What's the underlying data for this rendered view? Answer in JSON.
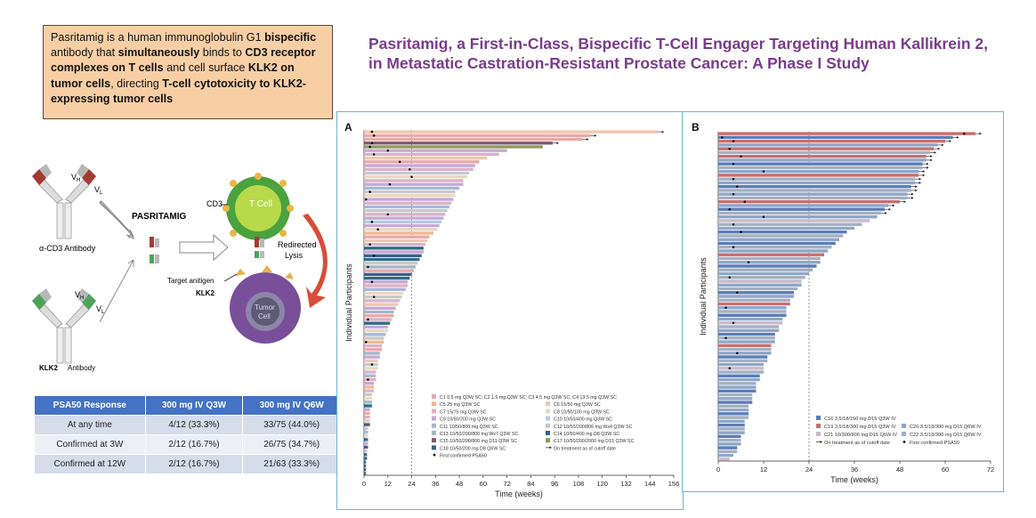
{
  "callout": {
    "t1": "Pasritamig is a human immunoglobulin G1 ",
    "t2": "bispecific",
    "t3": " antibody that ",
    "t4": "simultaneously",
    "t5": " binds to ",
    "t6": "CD3 receptor complexes on T cells",
    "t7": " and cell surface ",
    "t8": "KLK2 on tumor cells",
    "t9": ", directing ",
    "t10": "T-cell cytotoxicity to KLK2-expressing tumor cells"
  },
  "title": {
    "line1": "Pasritamig, a First-in-Class, Bispecific T-Cell Engager Targeting Human Kallikrein 2,",
    "line2": "in Metastatic Castration-Resistant Prostate Cancer: A Phase I Study"
  },
  "mechanism": {
    "vh": "V",
    "vh_sub": "H",
    "vl": "V",
    "vl_sub": "L",
    "cd3_antibody": "α-CD3 Antibody",
    "klk2_antibody_a": "KLK2",
    "klk2_antibody_b": "Antibody",
    "pasritamig": "PASRITAMIG",
    "cd3": "CD3",
    "tcell": "T Cell",
    "redirected": "Redirected",
    "lysis": "Lysis",
    "target_antigen": "Target anitigen",
    "klk2": "KLK2",
    "tumor": "Tumor",
    "cell": "Cell"
  },
  "psa_table": {
    "headers": [
      "PSA50 Response",
      "300 mg IV Q3W",
      "300 mg IV Q6W"
    ],
    "rows": [
      [
        "At any time",
        "4/12 (33.3%)",
        "33/75 (44.0%)"
      ],
      [
        "Confirmed at 3W",
        "2/12 (16.7%)",
        "26/75 (34.7%)"
      ],
      [
        "Confirmed at 12W",
        "2/12 (16.7%)",
        "21/63 (33.3%)"
      ]
    ]
  },
  "chart_data": [
    {
      "type": "bar",
      "panel": "A",
      "orientation": "horizontal",
      "xlabel": "Time (weeks)",
      "ylabel": "Individual Participants",
      "xticks": [
        0,
        12,
        24,
        36,
        48,
        60,
        72,
        84,
        96,
        108,
        120,
        132,
        144,
        156
      ],
      "xlim": [
        0,
        156
      ],
      "reference_line": 24,
      "legend": [
        {
          "label": "C1 0.5 mg Q3W SC; C2 1.5 mg Q3W SC; C3 4.5 mg Q3W SC; C4 13.5 mg Q3W SC",
          "color": "#e9a9a9"
        },
        {
          "label": "C5 25 mg Q3W SC",
          "color": "#f2b88f"
        },
        {
          "label": "C6 15/50 mg Q3W SC",
          "color": "#f1c6b0"
        },
        {
          "label": "C7 15/75 mg Q3W SC",
          "color": "#d9b3c8"
        },
        {
          "label": "C8 10/50/100 mg Q3W SC",
          "color": "#e8d7c2"
        },
        {
          "label": "C9 10/50/200 mg Q3W SC",
          "color": "#c7a8d6"
        },
        {
          "label": "C10 10/50/400 mg Q3W SC",
          "color": "#b7c9e0"
        },
        {
          "label": "C11 10/50/800 mg Q3W SC",
          "color": "#a6b8d8"
        },
        {
          "label": "C12 10/50/200/800 mg Wx4 Q3W SC",
          "color": "#c9c9c9"
        },
        {
          "label": "C13 10/50/200/800 mg Wx7 Q3W SC",
          "color": "#a3b7c7"
        },
        {
          "label": "C14 10/50/400 mg D8 Q3W SC",
          "color": "#2f6b84"
        },
        {
          "label": "C15 10/50/200/800 mg D11 Q3W SC",
          "color": "#7b5a6e"
        },
        {
          "label": "C17 10/50/200/2000 mg D15 Q3W SC",
          "color": "#8e9b57"
        },
        {
          "label": "C18 10/50/200 mg D8 Q6W SC",
          "color": "#3c5d8f"
        },
        {
          "label": "On treatment as of cutoff date",
          "color": "#222222"
        },
        {
          "label": "First confirmed PSA50",
          "color": "#222222"
        }
      ],
      "bars": [
        148,
        114,
        110,
        95,
        90,
        72,
        68,
        62,
        58,
        56,
        55,
        53,
        52,
        50,
        50,
        48,
        46,
        46,
        45,
        44,
        43,
        42,
        41,
        40,
        39,
        38,
        37,
        35,
        33,
        32,
        31,
        30,
        30,
        29,
        28,
        27,
        26,
        25,
        24,
        23,
        22,
        22,
        21,
        20,
        19,
        18,
        17,
        16,
        15,
        15,
        14,
        13,
        12,
        12,
        11,
        10,
        10,
        9,
        9,
        8,
        8,
        7,
        7,
        7,
        6,
        6,
        6,
        5,
        5,
        5,
        4,
        4,
        4,
        4,
        3,
        3,
        3,
        3,
        3,
        2,
        2,
        2,
        2,
        2,
        2,
        1.5,
        1.5,
        1.5,
        1,
        1,
        1,
        1
      ],
      "bar_colors": [
        "#f1c6b0",
        "#e9a9a9",
        "#e9a9a9",
        "#7b5a6e",
        "#8e9b57",
        "#c7a8d6",
        "#d9b3c8",
        "#f1c6b0",
        "#e9a9a9",
        "#c7a8d6",
        "#d9b3c8",
        "#c9c9c9",
        "#e8d7c2",
        "#d9b3c8",
        "#c7a8d6",
        "#a6b8d8",
        "#c9c9c9",
        "#e8d7c2",
        "#c7a8d6",
        "#d9b3c8",
        "#a6b8d8",
        "#c9c9c9",
        "#d9b3c8",
        "#c7a8d6",
        "#b7c9e0",
        "#c7a8d6",
        "#e8d7c2",
        "#f2b88f",
        "#e9a9a9",
        "#f1c6b0",
        "#d9b3c8",
        "#2f6b84",
        "#c7a8d6",
        "#3c5d8f",
        "#2f6b84",
        "#c9c9c9",
        "#a3b7c7",
        "#e9a9a9",
        "#3c5d8f",
        "#2f6b84",
        "#c7a8d6",
        "#d9b3c8",
        "#a6b8d8",
        "#e8d7c2",
        "#c9c9c9",
        "#d9b3c8",
        "#f1c6b0",
        "#c7a8d6",
        "#a3b7c7",
        "#e9a9a9",
        "#d9b3c8",
        "#2f6b84",
        "#c7a8d6",
        "#e8d7c2",
        "#a6b8d8",
        "#c9c9c9",
        "#f2b88f",
        "#d9b3c8",
        "#e9a9a9",
        "#a3b7c7",
        "#c7a8d6",
        "#f1c6b0",
        "#c9c9c9",
        "#e8d7c2",
        "#d9b3c8",
        "#a6b8d8",
        "#e9a9a9",
        "#c7a8d6",
        "#f2b88f",
        "#d9b3c8",
        "#c9c9c9",
        "#e8d7c2",
        "#a3b7c7",
        "#2f6b84",
        "#c7a8d6",
        "#e9a9a9",
        "#d9b3c8",
        "#f1c6b0",
        "#3c5d8f",
        "#c9c9c9",
        "#a6b8d8",
        "#e8d7c2",
        "#2f6b84",
        "#c7a8d6",
        "#3c5d8f",
        "#d9b3c8",
        "#2f6b84",
        "#3c5d8f",
        "#2f6b84",
        "#3c5d8f",
        "#2f6b84",
        "#3c5d8f"
      ],
      "ongoing": [
        0,
        1,
        2,
        3
      ],
      "psa50_markers": [
        [
          0,
          4
        ],
        [
          1,
          5
        ],
        [
          3,
          4
        ],
        [
          4,
          3
        ],
        [
          5,
          12
        ],
        [
          6,
          5
        ],
        [
          8,
          18
        ],
        [
          10,
          23
        ],
        [
          12,
          24
        ],
        [
          14,
          13
        ],
        [
          16,
          3
        ],
        [
          18,
          1
        ],
        [
          22,
          12
        ],
        [
          24,
          4
        ],
        [
          26,
          7
        ],
        [
          30,
          3
        ],
        [
          33,
          5
        ],
        [
          36,
          2
        ],
        [
          40,
          4
        ],
        [
          44,
          5
        ],
        [
          50,
          2
        ],
        [
          56,
          1
        ],
        [
          62,
          4
        ],
        [
          66,
          2
        ]
      ]
    },
    {
      "type": "bar",
      "panel": "B",
      "orientation": "horizontal",
      "xlabel": "Time (weeks)",
      "ylabel": "Individual Participants",
      "xticks": [
        0,
        12,
        24,
        36,
        48,
        60,
        72
      ],
      "xlim": [
        0,
        72
      ],
      "reference_line": 24,
      "legend": [
        {
          "label": "C16 3.5/18/150 mg D15 Q3W IV",
          "color": "#5b7db8"
        },
        {
          "label": "C19 3.5/18/300 mg D15 Q3W IV",
          "color": "#c86f6f"
        },
        {
          "label": "C20 3.5/18/300 mg D15 Q6W IV",
          "color": "#8fa6c9"
        },
        {
          "label": "C21 10/300/900 mg D15 Q6W IV",
          "color": "#c9b9c9"
        },
        {
          "label": "C22 3.5/18/300 mg D15 Q6W IV",
          "color": "#a3b0c2"
        },
        {
          "label": "On treatment as of cutoff date",
          "color": "#222222"
        },
        {
          "label": "First confirmed PSA50",
          "color": "#222222"
        }
      ],
      "bars": [
        68,
        62,
        60,
        58,
        57,
        56,
        55,
        55,
        54,
        54,
        53,
        53,
        52,
        52,
        51,
        51,
        50,
        50,
        48,
        45,
        44,
        43,
        42,
        40,
        38,
        36,
        34,
        33,
        32,
        31,
        30,
        29,
        28,
        27,
        27,
        26,
        25,
        24,
        23,
        22,
        22,
        21,
        20,
        20,
        19,
        19,
        18,
        18,
        18,
        17,
        17,
        16,
        16,
        15,
        15,
        15,
        14,
        14,
        14,
        13,
        13,
        12,
        12,
        12,
        11,
        11,
        10,
        10,
        10,
        9,
        9,
        9,
        8,
        8,
        8,
        8,
        7,
        7,
        7,
        7,
        6,
        6,
        6,
        5,
        5,
        4,
        3
      ],
      "bar_colors": [
        "#c86f6f",
        "#5b7db8",
        "#c86f6f",
        "#8fa6c9",
        "#c86f6f",
        "#a3b0c2",
        "#c86f6f",
        "#8fa6c9",
        "#5b7db8",
        "#a3b0c2",
        "#8fa6c9",
        "#c86f6f",
        "#a3b0c2",
        "#8fa6c9",
        "#5b7db8",
        "#a3b0c2",
        "#8fa6c9",
        "#a3b0c2",
        "#c86f6f",
        "#8fa6c9",
        "#5b7db8",
        "#a3b0c2",
        "#8fa6c9",
        "#c9b9c9",
        "#a3b0c2",
        "#8fa6c9",
        "#5b7db8",
        "#a3b0c2",
        "#8fa6c9",
        "#5b7db8",
        "#a3b0c2",
        "#8fa6c9",
        "#c86f6f",
        "#a3b0c2",
        "#8fa6c9",
        "#5b7db8",
        "#a3b0c2",
        "#8fa6c9",
        "#a3b0c2",
        "#c9b9c9",
        "#8fa6c9",
        "#a3b0c2",
        "#5b7db8",
        "#8fa6c9",
        "#a3b0c2",
        "#c86f6f",
        "#8fa6c9",
        "#a3b0c2",
        "#5b7db8",
        "#8fa6c9",
        "#c9b9c9",
        "#a3b0c2",
        "#8fa6c9",
        "#5b7db8",
        "#a3b0c2",
        "#8fa6c9",
        "#c86f6f",
        "#a3b0c2",
        "#8fa6c9",
        "#5b7db8",
        "#a3b0c2",
        "#8fa6c9",
        "#c9b9c9",
        "#a3b0c2",
        "#5b7db8",
        "#8fa6c9",
        "#a3b0c2",
        "#8fa6c9",
        "#5b7db8",
        "#a3b0c2",
        "#8fa6c9",
        "#5b7db8",
        "#a3b0c2",
        "#8fa6c9",
        "#5b7db8",
        "#a3b0c2",
        "#8fa6c9",
        "#5b7db8",
        "#a3b0c2",
        "#8fa6c9",
        "#5b7db8",
        "#a3b0c2",
        "#8fa6c9",
        "#5b7db8",
        "#a3b0c2",
        "#8fa6c9",
        "#c9b9c9"
      ],
      "ongoing": [
        0,
        1,
        2,
        3,
        4,
        5,
        6,
        7,
        8,
        9,
        10,
        11,
        12,
        13,
        14,
        15,
        16,
        17,
        18,
        19,
        20,
        21
      ],
      "psa50_markers": [
        [
          0,
          65
        ],
        [
          1,
          1
        ],
        [
          2,
          4
        ],
        [
          4,
          3
        ],
        [
          6,
          6
        ],
        [
          8,
          4
        ],
        [
          10,
          12
        ],
        [
          12,
          4
        ],
        [
          14,
          5
        ],
        [
          16,
          4
        ],
        [
          18,
          7
        ],
        [
          20,
          3
        ],
        [
          22,
          12
        ],
        [
          24,
          4
        ],
        [
          26,
          6
        ],
        [
          30,
          4
        ],
        [
          34,
          8
        ],
        [
          38,
          3
        ],
        [
          42,
          5
        ],
        [
          46,
          2
        ],
        [
          50,
          4
        ],
        [
          54,
          2
        ],
        [
          58,
          5
        ],
        [
          62,
          3
        ]
      ]
    }
  ]
}
